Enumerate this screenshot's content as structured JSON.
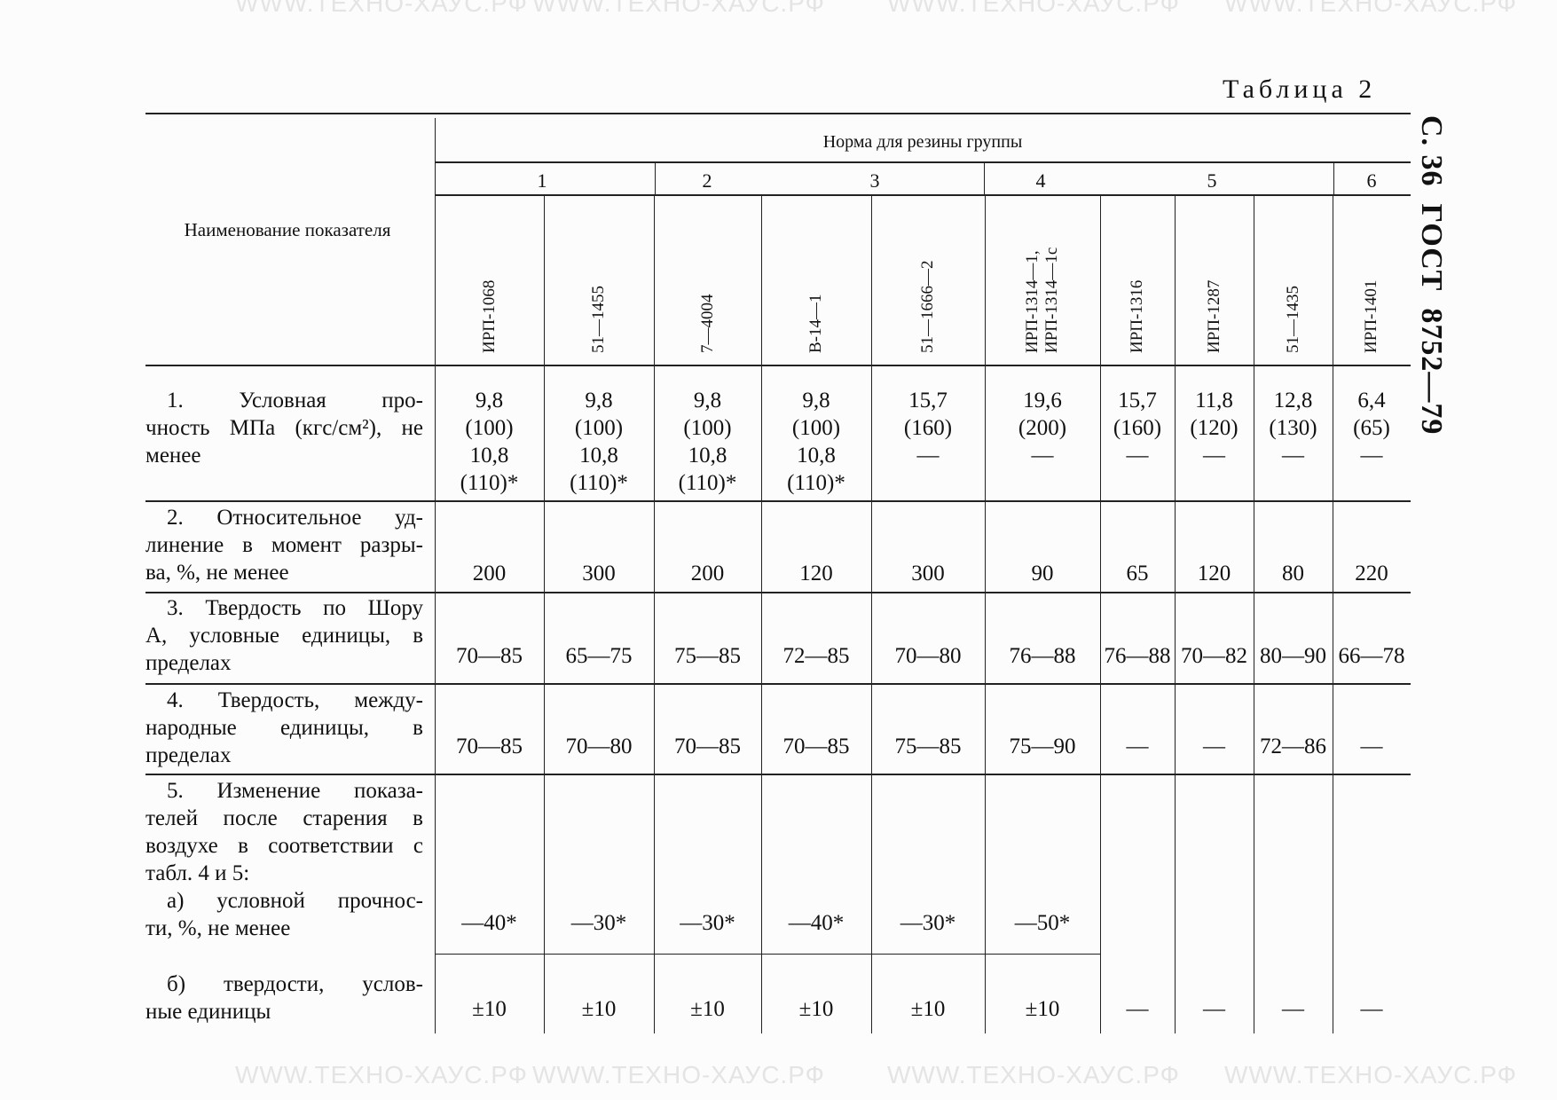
{
  "side_header": "С. 36  ГОСТ  8752—79",
  "table_label": "Таблица 2",
  "watermark": "WWW.ТЕХНО-ХАУС.РФ",
  "header": {
    "name_col": "Наименование показателя",
    "group_title": "Норма для резины группы",
    "groups": [
      "1",
      "2",
      "3",
      "4",
      "5",
      "6"
    ],
    "grades": [
      "ИРП-1068",
      "51—1455",
      "7—4004",
      "В-14—1",
      "51—1666—2",
      "ИРП-1314—1,\nИРП-1314—1с",
      "ИРП-1316",
      "ИРП-1287",
      "51—1435",
      "ИРП-1401"
    ]
  },
  "rows": [
    {
      "label": [
        "1. Условная про-",
        "чность МПа (кгс/см²), не",
        "менее"
      ],
      "values": [
        "9,8\n(100)\n10,8\n(110)*",
        "9,8\n(100)\n10,8\n(110)*",
        "9,8\n(100)\n10,8\n(110)*",
        "9,8\n(100)\n10,8\n(110)*",
        "15,7\n(160)\n—",
        "19,6\n(200)\n—",
        "15,7\n(160)\n—",
        "11,8\n(120)\n—",
        "12,8\n(130)\n—",
        "6,4\n(65)\n—"
      ]
    },
    {
      "label": [
        "2. Относительное уд-",
        "линение в момент разры-",
        "ва, %, не менее"
      ],
      "values": [
        "200",
        "300",
        "200",
        "120",
        "300",
        "90",
        "65",
        "120",
        "80",
        "220"
      ]
    },
    {
      "label": [
        "3. Твердость по Шору",
        "А, условные единицы, в",
        "пределах"
      ],
      "values": [
        "70—85",
        "65—75",
        "75—85",
        "72—85",
        "70—80",
        "76—88",
        "76—88",
        "70—82",
        "80—90",
        "66—78"
      ]
    },
    {
      "label": [
        "4. Твердость, между-",
        "народные единицы, в",
        "пределах"
      ],
      "values": [
        "70—85",
        "70—80",
        "70—85",
        "70—85",
        "75—85",
        "75—90",
        "—",
        "—",
        "72—86",
        "—"
      ]
    },
    {
      "label": [
        "5. Изменение показа-",
        "телей после старения в",
        "воздухе в соответствии с",
        "табл. 4 и 5:",
        "а) условной прочнос-",
        "ти, %, не менее"
      ],
      "values": [
        "—40*",
        "—30*",
        "—30*",
        "—40*",
        "—30*",
        "—50*",
        "",
        "",
        "",
        ""
      ]
    },
    {
      "label": [
        "б) твердости, услов-",
        "ные единицы"
      ],
      "values": [
        "±10",
        "±10",
        "±10",
        "±10",
        "±10",
        "±10",
        "—",
        "—",
        "—",
        "—"
      ]
    }
  ]
}
